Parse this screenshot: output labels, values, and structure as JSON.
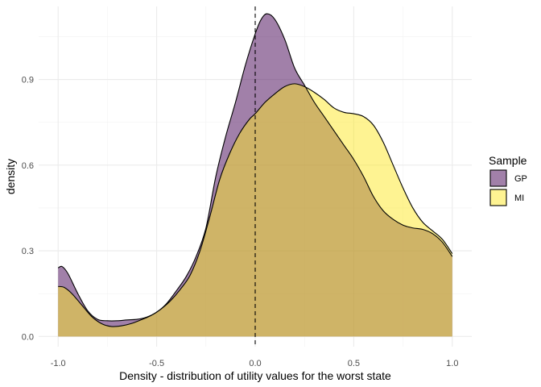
{
  "chart_data": {
    "type": "area",
    "xlabel": "Density - distribution of utility values for the worst state",
    "ylabel": "density",
    "xlim": [
      -1.0,
      1.0
    ],
    "ylim": [
      0.0,
      1.15
    ],
    "x_ticks": [
      -1.0,
      -0.5,
      0.0,
      0.5,
      1.0
    ],
    "x_tick_labels": [
      "-1.0",
      "-0.5",
      "0.0",
      "0.5",
      "1.0"
    ],
    "y_ticks": [
      0.0,
      0.3,
      0.6,
      0.9
    ],
    "y_tick_labels": [
      "0.0",
      "0.3",
      "0.6",
      "0.9"
    ],
    "grid": true,
    "reference_line": {
      "x": 0.0,
      "style": "dashed"
    },
    "legend": {
      "title": "Sample",
      "position": "right"
    },
    "series": [
      {
        "name": "GP",
        "color": "#440154",
        "points": [
          [
            -1.0,
            0.24
          ],
          [
            -0.98,
            0.245
          ],
          [
            -0.95,
            0.22
          ],
          [
            -0.9,
            0.15
          ],
          [
            -0.85,
            0.09
          ],
          [
            -0.8,
            0.06
          ],
          [
            -0.75,
            0.055
          ],
          [
            -0.7,
            0.055
          ],
          [
            -0.65,
            0.058
          ],
          [
            -0.6,
            0.06
          ],
          [
            -0.55,
            0.068
          ],
          [
            -0.5,
            0.085
          ],
          [
            -0.45,
            0.115
          ],
          [
            -0.4,
            0.16
          ],
          [
            -0.35,
            0.21
          ],
          [
            -0.3,
            0.28
          ],
          [
            -0.25,
            0.38
          ],
          [
            -0.2,
            0.56
          ],
          [
            -0.15,
            0.7
          ],
          [
            -0.1,
            0.82
          ],
          [
            -0.05,
            0.95
          ],
          [
            0.0,
            1.06
          ],
          [
            0.03,
            1.11
          ],
          [
            0.06,
            1.13
          ],
          [
            0.1,
            1.11
          ],
          [
            0.15,
            1.04
          ],
          [
            0.2,
            0.94
          ],
          [
            0.25,
            0.88
          ],
          [
            0.3,
            0.82
          ],
          [
            0.35,
            0.77
          ],
          [
            0.4,
            0.72
          ],
          [
            0.45,
            0.67
          ],
          [
            0.5,
            0.62
          ],
          [
            0.55,
            0.56
          ],
          [
            0.6,
            0.49
          ],
          [
            0.65,
            0.44
          ],
          [
            0.7,
            0.41
          ],
          [
            0.75,
            0.39
          ],
          [
            0.8,
            0.38
          ],
          [
            0.85,
            0.375
          ],
          [
            0.9,
            0.36
          ],
          [
            0.95,
            0.33
          ],
          [
            1.0,
            0.28
          ]
        ]
      },
      {
        "name": "MI",
        "color": "#FDE725",
        "points": [
          [
            -1.0,
            0.175
          ],
          [
            -0.97,
            0.172
          ],
          [
            -0.93,
            0.15
          ],
          [
            -0.88,
            0.11
          ],
          [
            -0.83,
            0.07
          ],
          [
            -0.78,
            0.045
          ],
          [
            -0.73,
            0.035
          ],
          [
            -0.68,
            0.037
          ],
          [
            -0.63,
            0.045
          ],
          [
            -0.58,
            0.058
          ],
          [
            -0.53,
            0.073
          ],
          [
            -0.48,
            0.095
          ],
          [
            -0.43,
            0.125
          ],
          [
            -0.38,
            0.165
          ],
          [
            -0.33,
            0.215
          ],
          [
            -0.28,
            0.3
          ],
          [
            -0.23,
            0.42
          ],
          [
            -0.18,
            0.55
          ],
          [
            -0.13,
            0.64
          ],
          [
            -0.08,
            0.71
          ],
          [
            -0.03,
            0.76
          ],
          [
            0.0,
            0.78
          ],
          [
            0.05,
            0.82
          ],
          [
            0.1,
            0.85
          ],
          [
            0.15,
            0.875
          ],
          [
            0.2,
            0.885
          ],
          [
            0.25,
            0.875
          ],
          [
            0.3,
            0.855
          ],
          [
            0.35,
            0.83
          ],
          [
            0.4,
            0.8
          ],
          [
            0.45,
            0.785
          ],
          [
            0.5,
            0.78
          ],
          [
            0.55,
            0.77
          ],
          [
            0.6,
            0.74
          ],
          [
            0.65,
            0.68
          ],
          [
            0.7,
            0.6
          ],
          [
            0.75,
            0.52
          ],
          [
            0.8,
            0.45
          ],
          [
            0.85,
            0.4
          ],
          [
            0.9,
            0.37
          ],
          [
            0.95,
            0.34
          ],
          [
            1.0,
            0.29
          ]
        ]
      }
    ]
  }
}
